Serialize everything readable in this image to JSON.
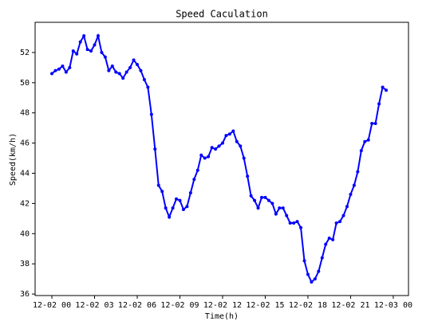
{
  "chart_data": {
    "type": "line",
    "title": "Speed Caculation",
    "x_label": "Time(h)",
    "y_label": "Speed(km/h)",
    "x": [
      0,
      0.25,
      0.5,
      0.75,
      1,
      1.25,
      1.5,
      1.75,
      2,
      2.25,
      2.5,
      2.75,
      3,
      3.25,
      3.5,
      3.75,
      4,
      4.25,
      4.5,
      4.75,
      5,
      5.25,
      5.5,
      5.75,
      6,
      6.25,
      6.5,
      6.75,
      7,
      7.25,
      7.5,
      7.75,
      8,
      8.25,
      8.5,
      8.75,
      9,
      9.25,
      9.5,
      9.75,
      10,
      10.25,
      10.5,
      10.75,
      11,
      11.25,
      11.5,
      11.75,
      12,
      12.25,
      12.5,
      12.75,
      13,
      13.25,
      13.5,
      13.75,
      14,
      14.25,
      14.5,
      14.75,
      15,
      15.25,
      15.5,
      15.75,
      16,
      16.25,
      16.5,
      16.75,
      17,
      17.25,
      17.5,
      17.75,
      18,
      18.25,
      18.5,
      18.75,
      19,
      19.25,
      19.5,
      19.75,
      20,
      20.25,
      20.5,
      20.75,
      21,
      21.25,
      21.5,
      21.75,
      22,
      22.25,
      22.5,
      22.75,
      23,
      23.25,
      23.5
    ],
    "series": [
      {
        "name": "Speed",
        "color": "#0000ff",
        "values": [
          50.6,
          50.8,
          50.9,
          51.1,
          50.7,
          51.0,
          52.1,
          51.9,
          52.7,
          53.1,
          52.2,
          52.1,
          52.5,
          53.1,
          52.0,
          51.7,
          50.8,
          51.1,
          50.7,
          50.6,
          50.3,
          50.7,
          51.0,
          51.5,
          51.2,
          50.8,
          50.2,
          49.7,
          47.9,
          45.6,
          43.2,
          42.8,
          41.7,
          41.1,
          41.7,
          42.3,
          42.2,
          41.6,
          41.8,
          42.7,
          43.6,
          44.2,
          45.2,
          45.0,
          45.1,
          45.7,
          45.6,
          45.8,
          46.0,
          46.5,
          46.6,
          46.8,
          46.1,
          45.8,
          45.0,
          43.8,
          42.5,
          42.2,
          41.7,
          42.4,
          42.4,
          42.2,
          42.0,
          41.3,
          41.7,
          41.7,
          41.2,
          40.7,
          40.7,
          40.8,
          40.4,
          38.2,
          37.3,
          36.8,
          37.0,
          37.5,
          38.4,
          39.3,
          39.7,
          39.6,
          40.7,
          40.8,
          41.2,
          41.8,
          42.6,
          43.2,
          44.1,
          45.5,
          46.1,
          46.2,
          47.3,
          47.3,
          48.6,
          49.7,
          49.5
        ]
      }
    ],
    "xlim": [
      -1.18,
      25.07
    ],
    "xticks": [
      {
        "value": 0,
        "label": "12-02 00"
      },
      {
        "value": 3,
        "label": "12-02 03"
      },
      {
        "value": 6,
        "label": "12-02 06"
      },
      {
        "value": 9,
        "label": "12-02 09"
      },
      {
        "value": 12,
        "label": "12-02 12"
      },
      {
        "value": 15,
        "label": "12-02 15"
      },
      {
        "value": 18,
        "label": "12-02 18"
      },
      {
        "value": 21,
        "label": "12-02 21"
      },
      {
        "value": 24,
        "label": "12-03 00"
      }
    ],
    "ylim": [
      35.9,
      54.0
    ],
    "yticks": [
      36,
      38,
      40,
      42,
      44,
      46,
      48,
      50,
      52
    ]
  }
}
